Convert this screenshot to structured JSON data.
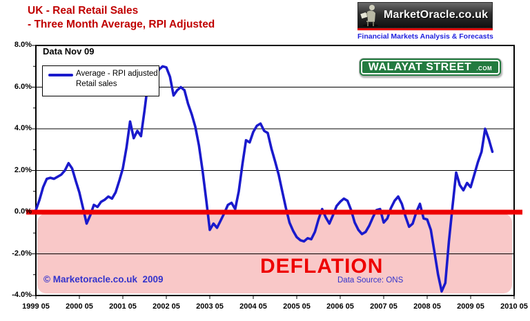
{
  "title": {
    "line1": "UK - Real Retail Sales",
    "line2": "- Three Month Average, RPI Adjusted"
  },
  "logo": {
    "name": "MarketOracle.co.uk",
    "tagline": "Financial Markets Analysis & Forecasts"
  },
  "badge": {
    "text": "WALAYAT STREET",
    "suffix": ".COM"
  },
  "legend": {
    "line1": "Average - RPI adjusted",
    "line2": "Retail sales"
  },
  "annotations": {
    "data_label": "Data Nov 09",
    "deflation": "DEFLATION",
    "source": "Data Source: ONS",
    "copyright": "© Marketoracle.co.uk  2009"
  },
  "colors": {
    "title_red": "#C00000",
    "zero_line_red": "#EE0000",
    "deflation_text_red": "#EE0000",
    "deflation_band_pink": "#F9C8C8",
    "series_blue": "#1A1ACC",
    "annotation_blue": "#3333CC",
    "tagline_blue": "#2222DD",
    "badge_green": "#237B40",
    "logo_stripe_red": "#E00000"
  },
  "chart_data": {
    "type": "line",
    "title": "UK - Real Retail Sales - Three Month Average, RPI Adjusted",
    "xlabel": "",
    "ylabel": "",
    "unit": "%",
    "ylim": [
      -4,
      8
    ],
    "y_tick_step": 2,
    "y_tick_labels": [
      "8.0%",
      "6.0%",
      "4.0%",
      "2.0%",
      "0.0%",
      "-2.0%",
      "-4.0%"
    ],
    "x_tick_labels": [
      "1999 05",
      "2000 05",
      "2001 05",
      "2002 05",
      "2003 05",
      "2004 05",
      "2005 05",
      "2006 05",
      "2007 05",
      "2008 05",
      "2009 05",
      "2010 05"
    ],
    "x_start_month": "1999-05",
    "x_end_month": "2009-11",
    "grid": "horizontal lines every 2%",
    "legend_position": "top-left",
    "annotations": {
      "zero_line_at": 0,
      "deflation_band_range": [
        0,
        -4
      ]
    },
    "series": [
      {
        "name": "Average - RPI adjusted Retail sales",
        "color": "#1A1ACC",
        "monthly_values": [
          0.1,
          0.6,
          1.2,
          1.6,
          1.65,
          1.6,
          1.7,
          1.8,
          2.0,
          2.35,
          2.1,
          1.5,
          0.95,
          0.2,
          -0.55,
          -0.15,
          0.35,
          0.25,
          0.5,
          0.6,
          0.75,
          0.65,
          0.95,
          1.5,
          2.1,
          3.1,
          4.35,
          3.55,
          3.9,
          3.65,
          4.9,
          6.3,
          5.9,
          6.5,
          6.85,
          7.0,
          6.95,
          6.5,
          5.6,
          5.85,
          6.0,
          5.85,
          5.2,
          4.7,
          4.1,
          3.2,
          2.0,
          0.6,
          -0.85,
          -0.55,
          -0.75,
          -0.4,
          -0.05,
          0.35,
          0.45,
          0.15,
          1.0,
          2.3,
          3.45,
          3.35,
          3.85,
          4.15,
          4.25,
          3.9,
          3.8,
          3.05,
          2.45,
          1.8,
          1.0,
          0.2,
          -0.5,
          -0.9,
          -1.2,
          -1.35,
          -1.4,
          -1.25,
          -1.3,
          -0.95,
          -0.35,
          0.15,
          -0.25,
          -0.55,
          -0.15,
          0.3,
          0.5,
          0.65,
          0.55,
          0.1,
          -0.5,
          -0.85,
          -1.05,
          -0.95,
          -0.65,
          -0.25,
          0.1,
          0.15,
          -0.5,
          -0.3,
          0.2,
          0.55,
          0.75,
          0.4,
          -0.2,
          -0.7,
          -0.55,
          0.0,
          0.4,
          -0.3,
          -0.35,
          -0.85,
          -1.9,
          -3.0,
          -3.8,
          -3.4,
          -1.4,
          0.3,
          1.9,
          1.3,
          1.05,
          1.4,
          1.2,
          1.8,
          2.4,
          2.9,
          4.0,
          3.5,
          2.9
        ]
      }
    ]
  }
}
